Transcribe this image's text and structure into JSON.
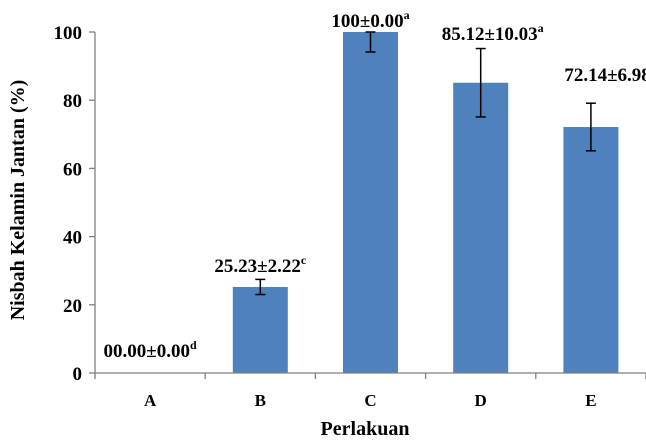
{
  "chart_data": {
    "type": "bar",
    "categories": [
      "A",
      "B",
      "C",
      "D",
      "E"
    ],
    "values": [
      0,
      25.23,
      100,
      85.12,
      72.14
    ],
    "errors": [
      0,
      2.22,
      0,
      10.03,
      6.98
    ],
    "data_labels": [
      {
        "text": "00.00±0.00",
        "sup": "d"
      },
      {
        "text": "25.23±2.22",
        "sup": "c"
      },
      {
        "text": "100±0.00",
        "sup": "a"
      },
      {
        "text": "85.12±10.03",
        "sup": "a"
      },
      {
        "text": "72.14±6.98",
        "sup": "b"
      }
    ],
    "xlabel": "Perlakuan",
    "ylabel": "Nisbah Kelamin Jantan (%)",
    "ylim": [
      0,
      100
    ],
    "yticks": [
      0,
      20,
      40,
      60,
      80,
      100
    ],
    "grid": false,
    "bar_color": "#4f81bd"
  }
}
